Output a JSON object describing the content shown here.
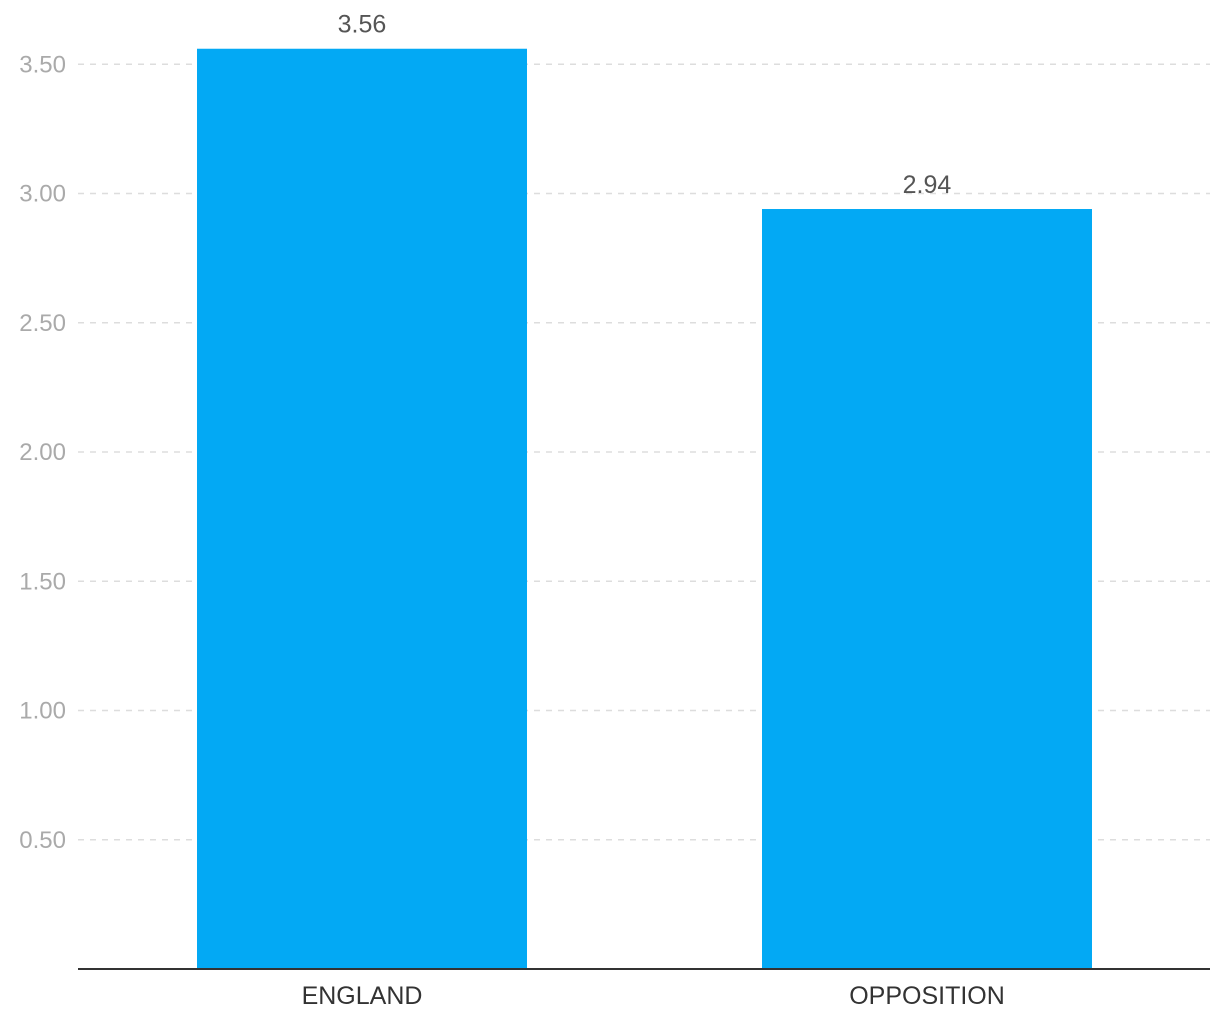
{
  "chart_data": {
    "type": "bar",
    "title": "",
    "xlabel": "",
    "ylabel": "",
    "categories": [
      "ENGLAND",
      "OPPOSITION"
    ],
    "values": [
      3.56,
      2.94
    ],
    "data_labels": [
      "3.56",
      "2.94"
    ],
    "y_ticks": [
      0.5,
      1.0,
      1.5,
      2.0,
      2.5,
      3.0,
      3.5
    ],
    "y_tick_labels": [
      "0.50",
      "1.00",
      "1.50",
      "2.00",
      "2.50",
      "3.00",
      "3.50"
    ],
    "ylim": [
      0,
      3.56
    ],
    "grid": true,
    "grid_style": "dashed horizontal",
    "legend": "none",
    "bar_color": "#03A9F4",
    "tick_color": "#AAAAAA",
    "category_label_color": "#333333",
    "data_label_color": "#555555",
    "axis_color": "#333333"
  }
}
